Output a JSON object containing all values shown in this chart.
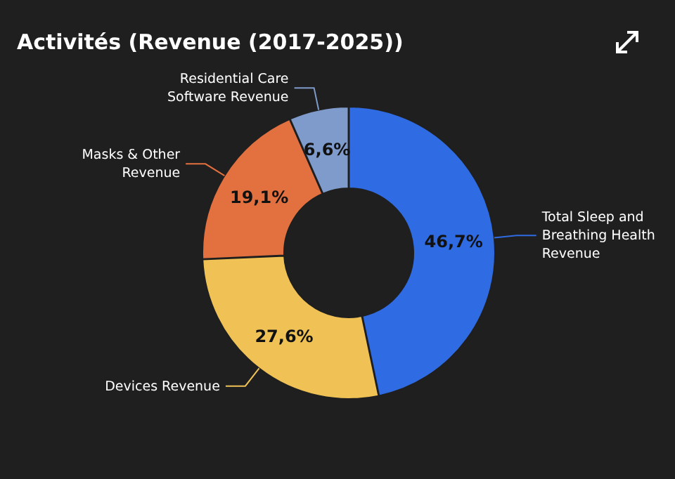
{
  "chart_data": {
    "type": "donut",
    "title": "Activités (Revenue (2017-2025))",
    "categories": [
      "Total Sleep and Breathing Health Revenue",
      "Devices Revenue",
      "Masks & Other Revenue",
      "Residential Care Software Revenue"
    ],
    "values": [
      46.7,
      27.6,
      19.1,
      6.6
    ],
    "value_labels": [
      "46,7%",
      "27,6%",
      "19,1%",
      "6,6%"
    ],
    "colors": [
      "#2f6be2",
      "#f0c255",
      "#e3703f",
      "#7f9bcb"
    ],
    "legend": false
  }
}
